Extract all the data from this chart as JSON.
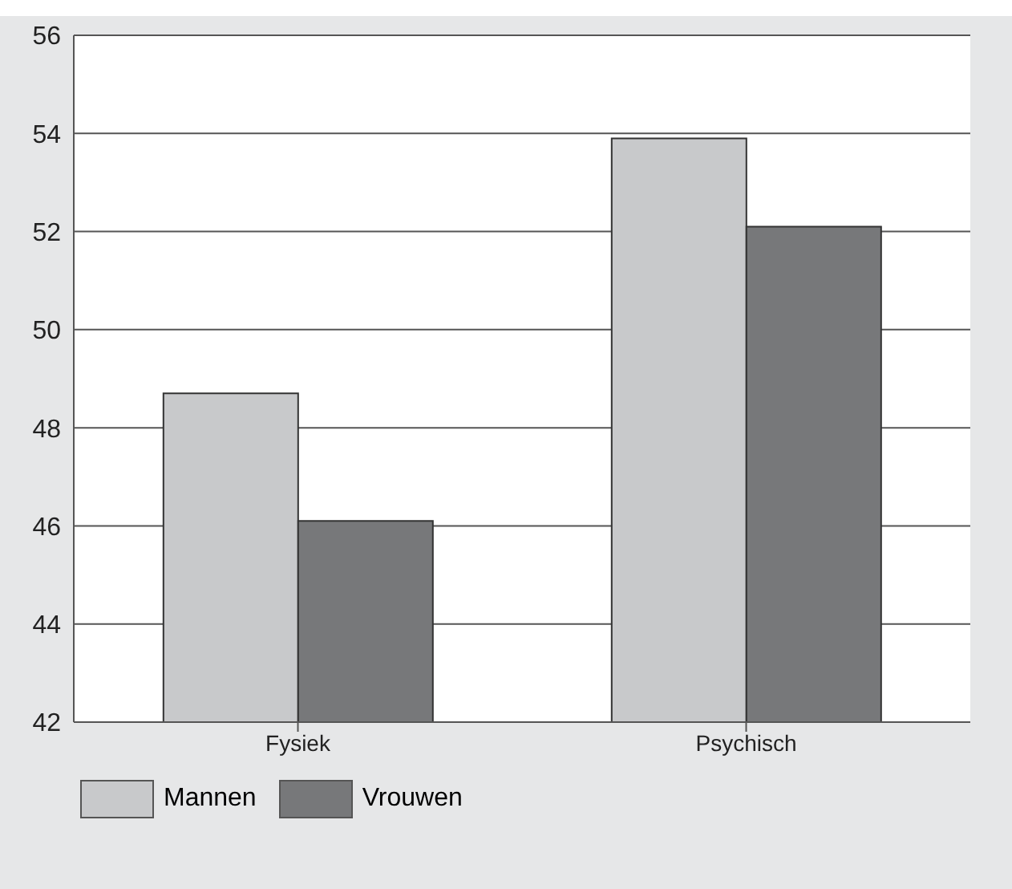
{
  "chart_data": {
    "type": "bar",
    "categories": [
      "Fysiek",
      "Psychisch"
    ],
    "series": [
      {
        "name": "Mannen",
        "color": "#c8c9cb",
        "values": [
          48.7,
          53.9
        ]
      },
      {
        "name": "Vrouwen",
        "color": "#77787a",
        "values": [
          46.1,
          52.1
        ]
      }
    ],
    "ylim": [
      42,
      56
    ],
    "yticks": [
      42,
      44,
      46,
      48,
      50,
      52,
      54,
      56
    ],
    "grid": "y",
    "legend": "bottom left"
  }
}
